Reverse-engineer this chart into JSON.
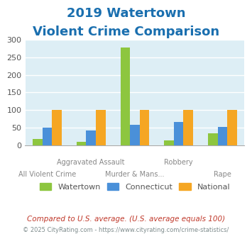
{
  "title_line1": "2019 Watertown",
  "title_line2": "Violent Crime Comparison",
  "title_color": "#1a6faf",
  "categories": [
    "All Violent Crime",
    "Aggravated Assault",
    "Murder & Mans...",
    "Robbery",
    "Rape"
  ],
  "row1_labels": [
    "",
    "Aggravated Assault",
    "",
    "Robbery",
    ""
  ],
  "row2_labels": [
    "All Violent Crime",
    "",
    "Murder & Mans...",
    "",
    "Rape"
  ],
  "watertown": [
    18,
    10,
    278,
    13,
    33
  ],
  "connecticut": [
    50,
    42,
    58,
    65,
    51
  ],
  "national": [
    100,
    100,
    100,
    100,
    100
  ],
  "color_watertown": "#8dc63f",
  "color_connecticut": "#4a90d9",
  "color_national": "#f5a623",
  "ylim": [
    0,
    300
  ],
  "yticks": [
    0,
    50,
    100,
    150,
    200,
    250,
    300
  ],
  "bg_color": "#ddeef5",
  "legend_labels": [
    "Watertown",
    "Connecticut",
    "National"
  ],
  "footnote1": "Compared to U.S. average. (U.S. average equals 100)",
  "footnote2": "© 2025 CityRating.com - https://www.cityrating.com/crime-statistics/",
  "footnote1_color": "#c0392b",
  "footnote2_color": "#7f8c8d"
}
